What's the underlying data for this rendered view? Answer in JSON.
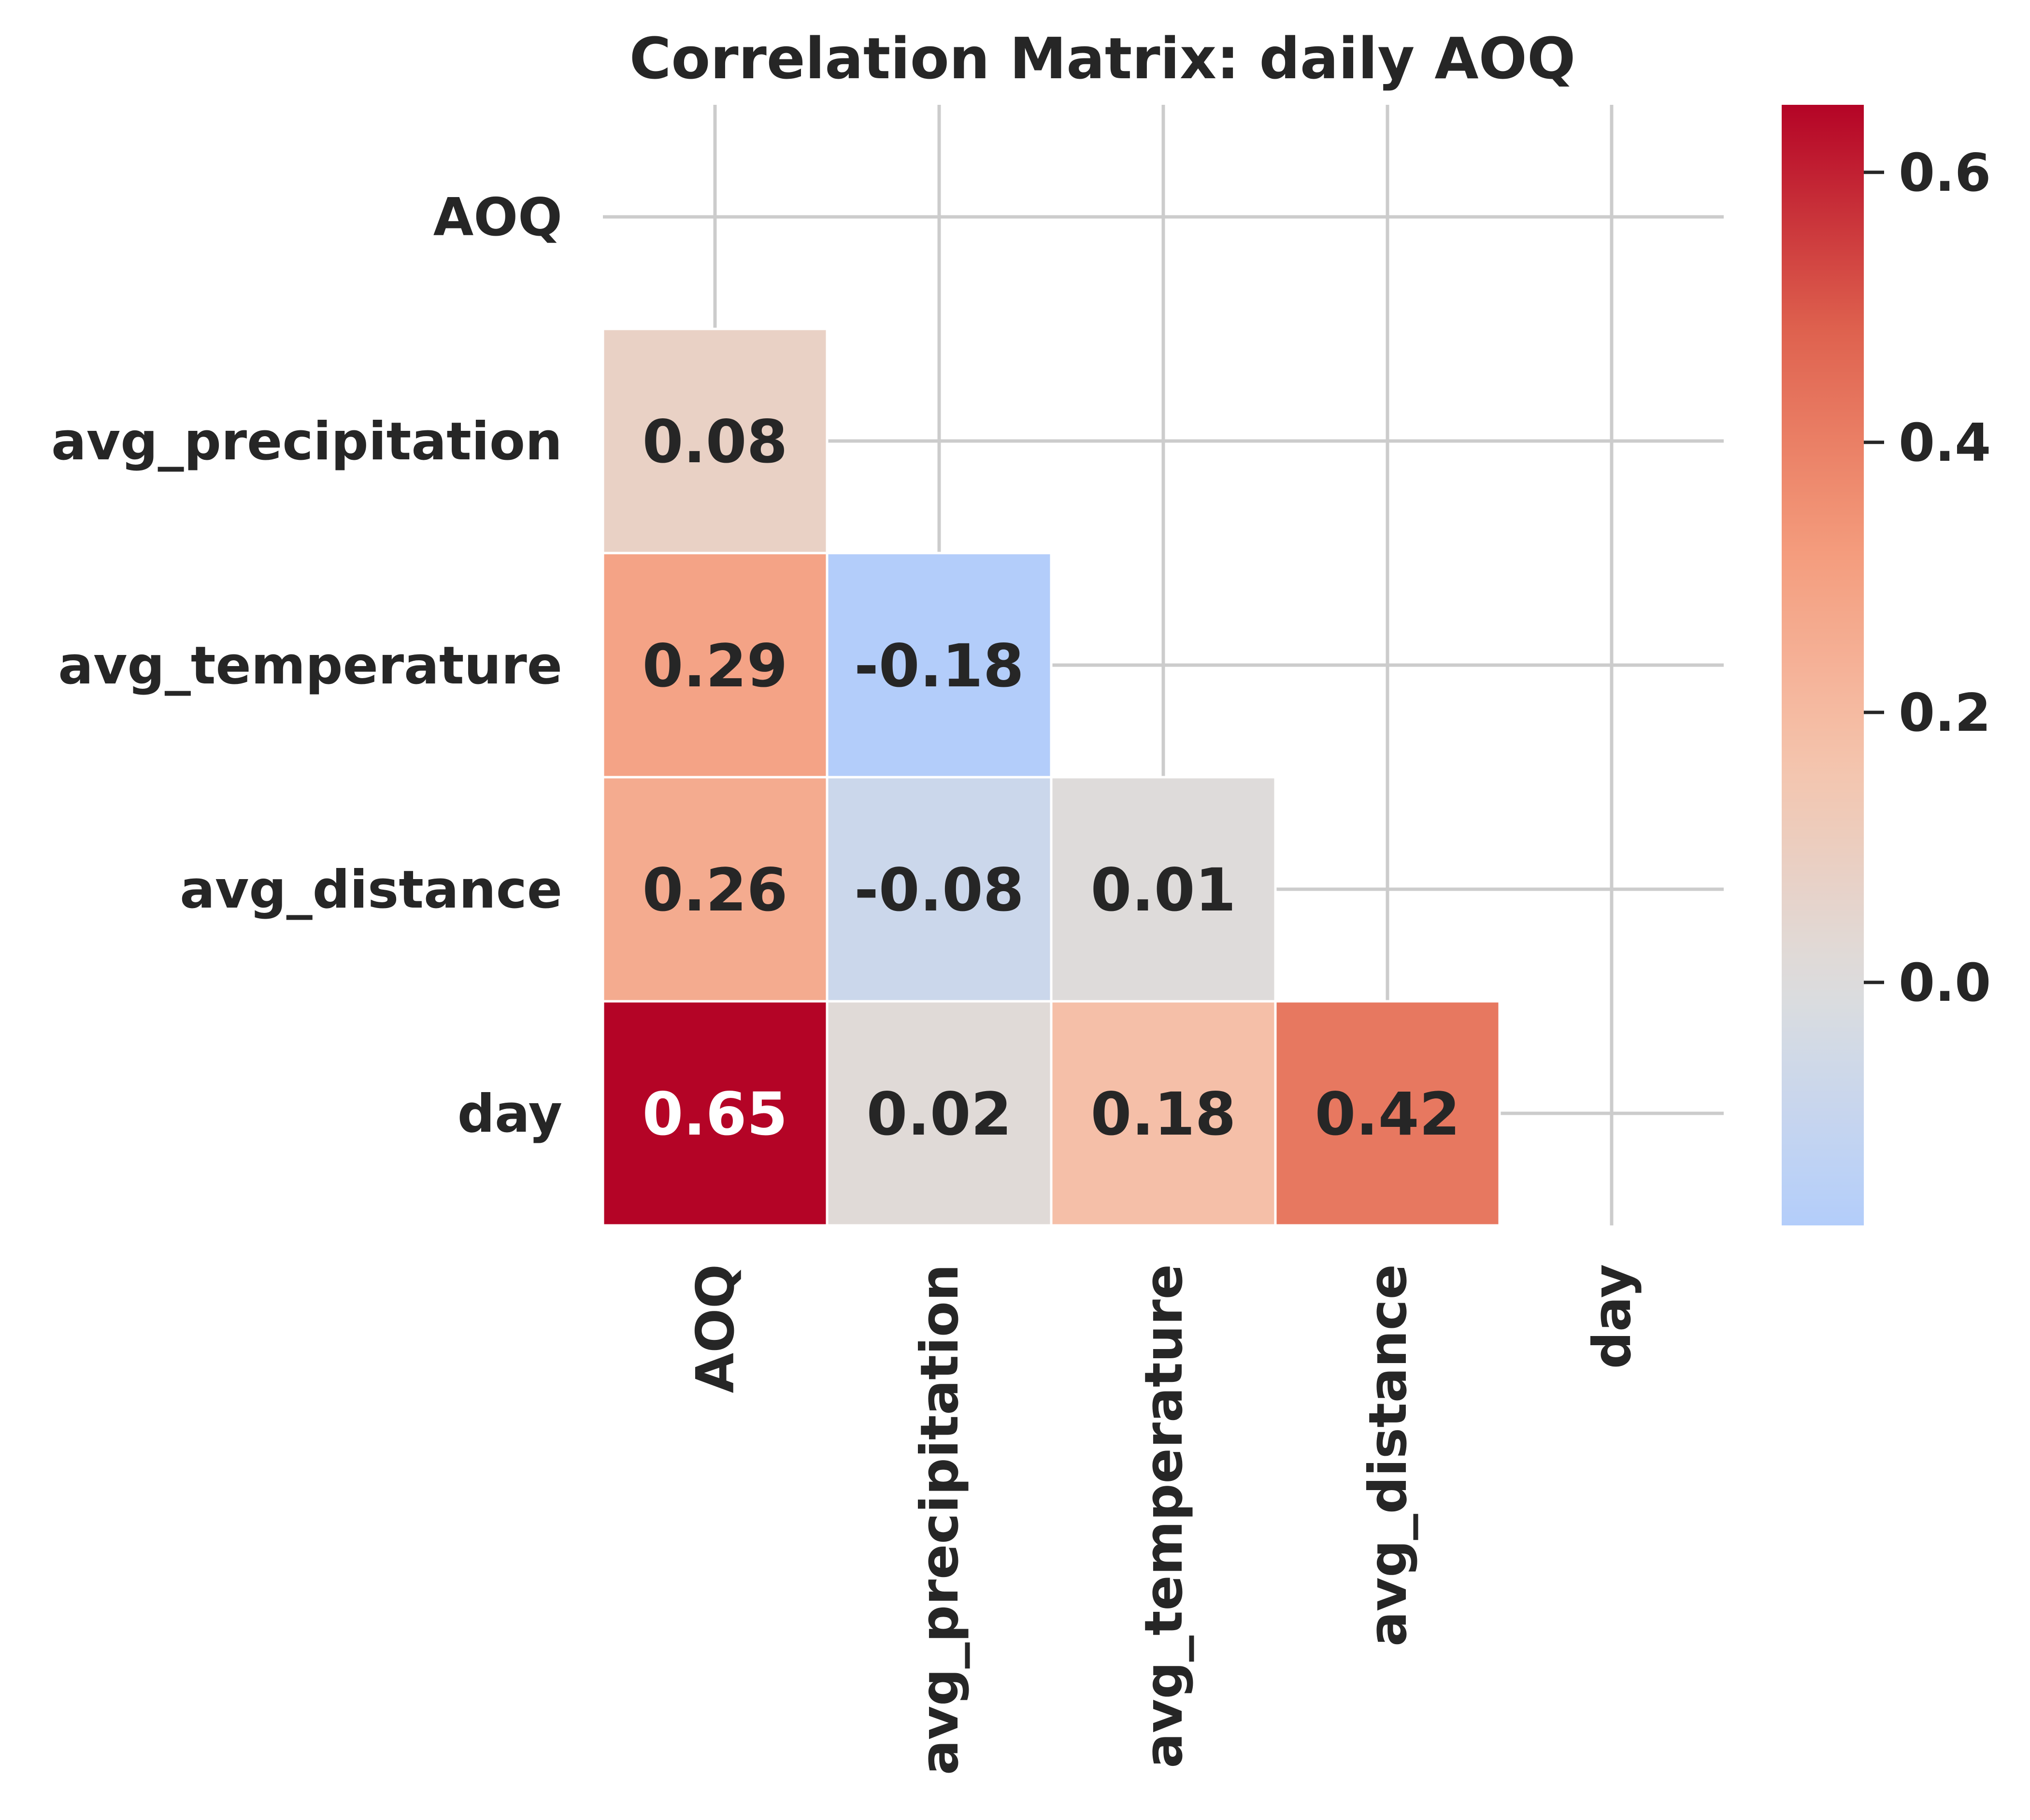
{
  "chart_data": {
    "type": "heatmap",
    "title": "Correlation Matrix: daily AOQ",
    "variables": [
      "AOQ",
      "avg_precipitation",
      "avg_temperature",
      "avg_distance",
      "day"
    ],
    "mask": "upper-triangle-including-diagonal",
    "cells": [
      {
        "row": "avg_precipitation",
        "col": "AOQ",
        "value": 0.08
      },
      {
        "row": "avg_temperature",
        "col": "AOQ",
        "value": 0.29
      },
      {
        "row": "avg_temperature",
        "col": "avg_precipitation",
        "value": -0.18
      },
      {
        "row": "avg_distance",
        "col": "AOQ",
        "value": 0.26
      },
      {
        "row": "avg_distance",
        "col": "avg_precipitation",
        "value": -0.08
      },
      {
        "row": "avg_distance",
        "col": "avg_temperature",
        "value": 0.01
      },
      {
        "row": "day",
        "col": "AOQ",
        "value": 0.65
      },
      {
        "row": "day",
        "col": "avg_precipitation",
        "value": 0.02
      },
      {
        "row": "day",
        "col": "avg_temperature",
        "value": 0.18
      },
      {
        "row": "day",
        "col": "avg_distance",
        "value": 0.42
      }
    ],
    "colormap": "coolwarm",
    "colorbar": {
      "vmin": -0.18,
      "vmax": 0.65,
      "center": 0,
      "ticks": [
        0.0,
        0.2,
        0.4,
        0.6
      ],
      "tick_labels": [
        "0.0",
        "0.2",
        "0.4",
        "0.6"
      ]
    },
    "grid": true
  }
}
